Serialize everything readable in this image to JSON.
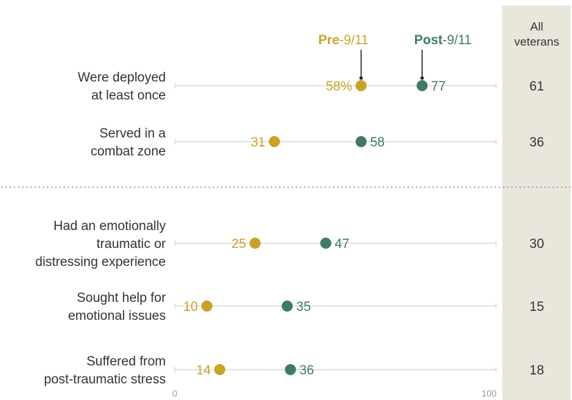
{
  "chart_data": {
    "type": "scatter",
    "colors": {
      "pre": "#c9a227",
      "post": "#3f7a68",
      "panel": "#e9e7dc"
    },
    "legend": {
      "pre": {
        "bold": "Pre",
        "rest": "-9/11"
      },
      "post": {
        "bold": "Post",
        "rest": "-9/11"
      }
    },
    "all_header": [
      "All",
      "veterans"
    ],
    "xlim": [
      0,
      100
    ],
    "x_ticks": [
      "0",
      "100"
    ],
    "categories": [
      {
        "lines": [
          "Were deployed",
          "at least once"
        ],
        "pre": 58,
        "post": 77,
        "pre_label": "58%",
        "post_label": "77",
        "all": "61"
      },
      {
        "lines": [
          "Served in a",
          "combat zone"
        ],
        "pre": 31,
        "post": 58,
        "pre_label": "31",
        "post_label": "58",
        "all": "36"
      },
      {
        "lines": [
          "Had an emotionally",
          "traumatic or",
          "distressing experience"
        ],
        "pre": 25,
        "post": 47,
        "pre_label": "25",
        "post_label": "47",
        "all": "30"
      },
      {
        "lines": [
          "Sought help for",
          "emotional issues"
        ],
        "pre": 10,
        "post": 35,
        "pre_label": "10",
        "post_label": "35",
        "all": "15"
      },
      {
        "lines": [
          "Suffered from",
          "post-traumatic stress"
        ],
        "pre": 14,
        "post": 36,
        "pre_label": "14",
        "post_label": "36",
        "all": "18"
      }
    ]
  }
}
